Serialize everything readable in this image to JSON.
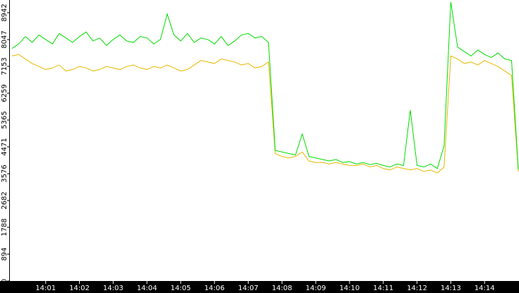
{
  "chart_data": {
    "type": "line",
    "x": [
      840,
      840.2,
      840.4,
      840.6,
      840.8,
      841,
      841.2,
      841.4,
      841.6,
      841.8,
      842,
      842.2,
      842.4,
      842.6,
      842.8,
      843,
      843.2,
      843.4,
      843.6,
      843.8,
      844,
      844.2,
      844.4,
      844.6,
      844.8,
      845,
      845.2,
      845.4,
      845.6,
      845.8,
      846,
      846.2,
      846.4,
      846.6,
      846.8,
      847,
      847.2,
      847.4,
      847.6,
      847.8,
      848,
      848.2,
      848.4,
      848.6,
      848.8,
      849,
      849.2,
      849.4,
      849.6,
      849.8,
      850,
      850.2,
      850.4,
      850.6,
      850.8,
      851,
      851.2,
      851.4,
      851.6,
      851.8,
      852,
      852.2,
      852.4,
      852.6,
      852.8,
      853,
      853.2,
      853.4,
      853.6,
      853.8,
      854,
      854.2,
      854.4,
      854.6,
      854.8,
      855
    ],
    "series": [
      {
        "color": "#00dd00",
        "values": [
          7750,
          7900,
          8150,
          7950,
          8200,
          8050,
          7900,
          8250,
          8100,
          7950,
          8150,
          8300,
          8000,
          8100,
          7850,
          8050,
          8200,
          8000,
          7950,
          8150,
          8100,
          7900,
          8050,
          8900,
          8200,
          8000,
          8250,
          7950,
          8100,
          8050,
          7900,
          8150,
          7850,
          8000,
          8200,
          8250,
          8100,
          8150,
          7950,
          4350,
          4300,
          4250,
          4200,
          4900,
          4150,
          4100,
          4050,
          4000,
          4050,
          3950,
          3980,
          3900,
          3950,
          3880,
          3920,
          3850,
          3800,
          3900,
          3850,
          5700,
          3850,
          3800,
          3900,
          3750,
          4500,
          9300,
          7800,
          7650,
          7500,
          7700,
          7550,
          7450,
          7600,
          7400,
          7350,
          3718
        ]
      },
      {
        "color": "#e8b800",
        "values": [
          7500,
          7550,
          7400,
          7250,
          7150,
          7050,
          7100,
          7200,
          7000,
          7050,
          7150,
          7100,
          7000,
          7050,
          7150,
          7100,
          7050,
          7150,
          7200,
          7100,
          7050,
          7150,
          7100,
          7200,
          7100,
          7000,
          7050,
          7200,
          7350,
          7300,
          7250,
          7400,
          7350,
          7300,
          7200,
          7250,
          7100,
          7150,
          7300,
          4250,
          4150,
          4100,
          4150,
          4300,
          4000,
          3950,
          3950,
          3900,
          3950,
          3900,
          3850,
          3850,
          3900,
          3800,
          3850,
          3750,
          3700,
          3800,
          3750,
          3700,
          3750,
          3650,
          3700,
          3600,
          3800,
          7500,
          7400,
          7250,
          7300,
          7200,
          7350,
          7250,
          7150,
          7000,
          6850,
          3650
        ]
      }
    ],
    "xlim": [
      839.94,
      855.02
    ],
    "xticks": [
      {
        "value": 841,
        "label": "14:01"
      },
      {
        "value": 842,
        "label": "14:02"
      },
      {
        "value": 843,
        "label": "14:03"
      },
      {
        "value": 844,
        "label": "14:04"
      },
      {
        "value": 845,
        "label": "14:05"
      },
      {
        "value": 846,
        "label": "14:06"
      },
      {
        "value": 847,
        "label": "14:07"
      },
      {
        "value": 848,
        "label": "14:08"
      },
      {
        "value": 849,
        "label": "14:09"
      },
      {
        "value": 850,
        "label": "14:10"
      },
      {
        "value": 851,
        "label": "14:11"
      },
      {
        "value": 852,
        "label": "14:12"
      },
      {
        "value": 853,
        "label": "14:13"
      },
      {
        "value": 854,
        "label": "14:14"
      }
    ],
    "ylim": [
      0,
      9366
    ],
    "yticks": [
      0,
      894,
      1788,
      2682,
      3576,
      4471,
      5365,
      6259,
      7153,
      8047,
      8942
    ]
  }
}
